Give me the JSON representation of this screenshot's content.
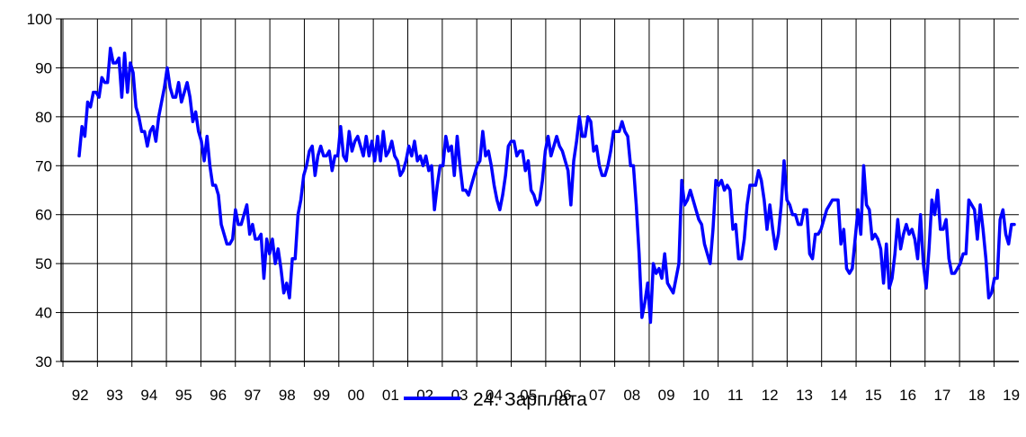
{
  "chart_data": {
    "type": "line",
    "title": "",
    "xlabel": "",
    "ylabel": "",
    "ylim": [
      30,
      100
    ],
    "y_ticks": [
      30,
      40,
      50,
      60,
      70,
      80,
      90,
      100
    ],
    "x_tick_labels": [
      "92",
      "93",
      "94",
      "95",
      "96",
      "97",
      "98",
      "99",
      "00",
      "01",
      "02",
      "03",
      "04",
      "05",
      "06",
      "07",
      "08",
      "09",
      "10",
      "11",
      "12",
      "13",
      "14",
      "15",
      "16",
      "17",
      "18",
      "19"
    ],
    "grid": true,
    "legend_position": "bottom",
    "series": [
      {
        "name": "24. Зарплата",
        "color": "#0000ff",
        "values": [
          72,
          78,
          76,
          83,
          82,
          85,
          85,
          84,
          88,
          87,
          87,
          94,
          91,
          91,
          92,
          84,
          93,
          85,
          91,
          89,
          82,
          80,
          77,
          77,
          74,
          77,
          78,
          75,
          80,
          83,
          86,
          90,
          86,
          84,
          84,
          87,
          83,
          85,
          87,
          84,
          79,
          81,
          77,
          75,
          71,
          76,
          70,
          66,
          66,
          64,
          58,
          56,
          54,
          54,
          55,
          61,
          58,
          58,
          60,
          62,
          56,
          58,
          55,
          55,
          56,
          47,
          55,
          52,
          55,
          50,
          53,
          49,
          44,
          46,
          43,
          51,
          51,
          60,
          63,
          68,
          70,
          73,
          74,
          68,
          72,
          74,
          72,
          72,
          73,
          69,
          72,
          72,
          78,
          72,
          71,
          77,
          73,
          75,
          76,
          74,
          72,
          76,
          72,
          75,
          71,
          76,
          71,
          77,
          72,
          73,
          75,
          72,
          71,
          68,
          69,
          71,
          74,
          72,
          75,
          71,
          72,
          70,
          72,
          69,
          70,
          61,
          66,
          70,
          70,
          76,
          73,
          74,
          68,
          76,
          70,
          65,
          65,
          64,
          66,
          68,
          70,
          71,
          77,
          72,
          73,
          70,
          66,
          63,
          61,
          64,
          68,
          74,
          75,
          75,
          72,
          73,
          73,
          69,
          71,
          65,
          64,
          62,
          63,
          67,
          73,
          76,
          72,
          74,
          76,
          74,
          73,
          71,
          69,
          62,
          71,
          75,
          80,
          76,
          76,
          80,
          79,
          73,
          74,
          70,
          68,
          68,
          70,
          73,
          77,
          77,
          77,
          79,
          77,
          76,
          70,
          70,
          62,
          52,
          39,
          42,
          46,
          38,
          50,
          48,
          49,
          47,
          52,
          46,
          45,
          44,
          47,
          50,
          67,
          62,
          63,
          65,
          63,
          61,
          59,
          58,
          54,
          52,
          50,
          57,
          67,
          66,
          67,
          65,
          66,
          65,
          57,
          58,
          51,
          51,
          55,
          62,
          66,
          66,
          66,
          69,
          67,
          63,
          57,
          62,
          57,
          53,
          56,
          62,
          71,
          63,
          62,
          60,
          60,
          58,
          58,
          61,
          61,
          52,
          51,
          56,
          56,
          57,
          59,
          61,
          62,
          63,
          63,
          63,
          54,
          57,
          49,
          48,
          49,
          55,
          61,
          56,
          70,
          62,
          61,
          55,
          56,
          55,
          53,
          46,
          54,
          45,
          47,
          52,
          59,
          53,
          56,
          58,
          56,
          57,
          55,
          51,
          60,
          50,
          45,
          53,
          63,
          60,
          65,
          57,
          57,
          59,
          51,
          48,
          48,
          49,
          50,
          52,
          52,
          63,
          62,
          61,
          55,
          62,
          57,
          51,
          43,
          44,
          47,
          47,
          59,
          61,
          56,
          54,
          58,
          58
        ]
      }
    ]
  }
}
